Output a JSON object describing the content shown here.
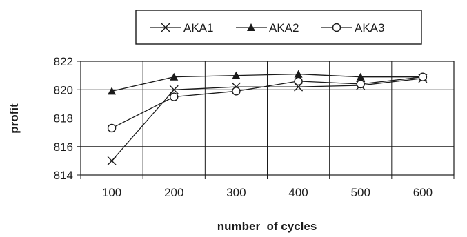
{
  "chart_data": {
    "type": "line",
    "title": "",
    "xlabel": "number  of cycles",
    "ylabel": "profit",
    "x": [
      100,
      200,
      300,
      400,
      500,
      600
    ],
    "x_tick_labels": [
      "100",
      "200",
      "300",
      "400",
      "500",
      "600"
    ],
    "ylim": [
      814,
      822
    ],
    "y_ticks": [
      814,
      816,
      818,
      820,
      822
    ],
    "y_tick_labels": [
      "814",
      "816",
      "818",
      "820",
      "822"
    ],
    "grid": true,
    "legend_position": "top-center",
    "series": [
      {
        "name": "AKA1",
        "marker": "x",
        "color": "#1a1a1a",
        "values": [
          815.0,
          820.0,
          820.2,
          820.2,
          820.3,
          820.8
        ]
      },
      {
        "name": "AKA2",
        "marker": "triangle",
        "color": "#1a1a1a",
        "values": [
          819.9,
          820.9,
          821.0,
          821.1,
          820.9,
          820.9
        ]
      },
      {
        "name": "AKA3",
        "marker": "circle",
        "color": "#1a1a1a",
        "values": [
          817.3,
          819.5,
          819.9,
          820.6,
          820.4,
          820.9
        ]
      }
    ]
  }
}
